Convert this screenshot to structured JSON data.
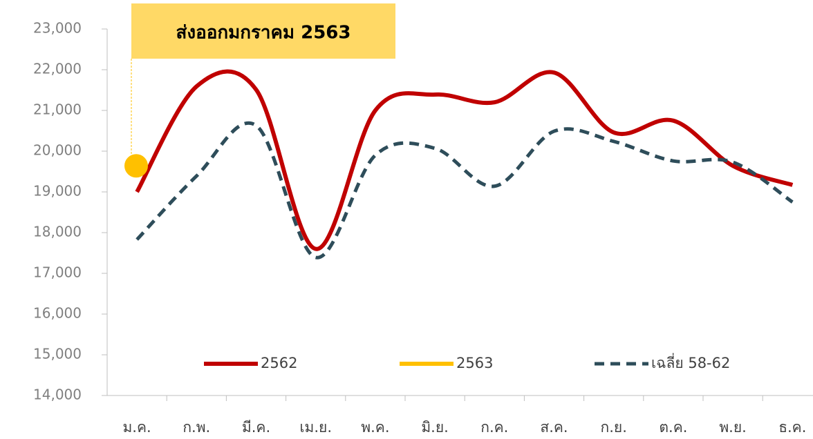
{
  "chart_data": {
    "type": "line",
    "annotation": "ส่งออกมกราคม 2563",
    "categories": [
      "ม.ค.",
      "ก.พ.",
      "มี.ค.",
      "เม.ย.",
      "พ.ค.",
      "มิ.ย.",
      "ก.ค.",
      "ส.ค.",
      "ก.ย.",
      "ต.ค.",
      "พ.ย.",
      "ธ.ค."
    ],
    "series": [
      {
        "name": "2562",
        "color": "#c00000",
        "dash": false,
        "values": [
          19000,
          21590,
          21510,
          17600,
          21000,
          21390,
          21200,
          21930,
          20460,
          20750,
          19640,
          19170
        ]
      },
      {
        "name": "2563",
        "color": "#ffc000",
        "dash": false,
        "values": [
          19640,
          null,
          null,
          null,
          null,
          null,
          null,
          null,
          null,
          null,
          null,
          null
        ]
      },
      {
        "name": "เฉลี่ย 58-62",
        "color": "#2e4d5a",
        "dash": true,
        "values": [
          17830,
          19390,
          20630,
          17390,
          19900,
          20070,
          19140,
          20490,
          20240,
          19760,
          19730,
          18750
        ]
      }
    ],
    "ylim": [
      14000,
      23000
    ],
    "yticks": [
      {
        "value": 14000,
        "label": "14,000"
      },
      {
        "value": 15000,
        "label": "15,000"
      },
      {
        "value": 16000,
        "label": "16,000"
      },
      {
        "value": 17000,
        "label": "17,000"
      },
      {
        "value": 18000,
        "label": "18,000"
      },
      {
        "value": 19000,
        "label": "19,000"
      },
      {
        "value": 20000,
        "label": "20,000"
      },
      {
        "value": 21000,
        "label": "21,000"
      },
      {
        "value": 22000,
        "label": "22,000"
      },
      {
        "value": 23000,
        "label": "23,000"
      }
    ],
    "grid": false
  }
}
